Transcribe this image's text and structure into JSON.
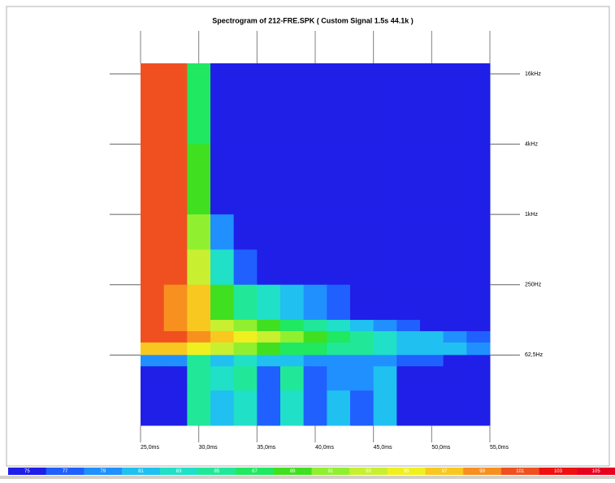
{
  "chart_data": {
    "type": "heatmap",
    "title": "Spectrogram of 212-FRE.SPK ( Custom Signal 1.5s 44.1k )",
    "xlim": [
      25,
      55
    ],
    "xticks": [
      {
        "value": 25,
        "label": "25,0ms"
      },
      {
        "value": 30,
        "label": "30,0ms"
      },
      {
        "value": 35,
        "label": "35,0ms"
      },
      {
        "value": 40,
        "label": "40,0ms"
      },
      {
        "value": 45,
        "label": "45,0ms"
      },
      {
        "value": 50,
        "label": "50,0ms"
      },
      {
        "value": 55,
        "label": "55,0ms"
      }
    ],
    "ylim": [
      15.6,
      19700
    ],
    "log_y": true,
    "yticks": [
      {
        "value": 16000,
        "label": "16kHz"
      },
      {
        "value": 4000,
        "label": "4kHz"
      },
      {
        "value": 1000,
        "label": "1kHz"
      },
      {
        "value": 250,
        "label": "250Hz"
      },
      {
        "value": 62.5,
        "label": "62,5Hz"
      }
    ],
    "x_edges": [
      25,
      27,
      29,
      31,
      33,
      35,
      37,
      39,
      41,
      43,
      45,
      47,
      49,
      51,
      53,
      55
    ],
    "y_edges": [
      19700,
      4000,
      1000,
      500,
      250,
      125,
      100,
      80,
      62.5,
      50,
      31,
      15.6
    ],
    "values": [
      [
        101,
        101,
        87,
        75,
        75,
        75,
        75,
        75,
        75,
        75,
        75,
        75,
        75,
        75,
        75
      ],
      [
        101,
        101,
        89,
        75,
        75,
        75,
        75,
        75,
        75,
        75,
        75,
        75,
        75,
        75,
        75
      ],
      [
        101,
        101,
        91,
        79,
        75,
        75,
        75,
        75,
        75,
        75,
        75,
        75,
        75,
        75,
        75
      ],
      [
        101,
        101,
        93,
        83,
        77,
        75,
        75,
        75,
        75,
        75,
        75,
        75,
        75,
        75,
        75
      ],
      [
        101,
        99,
        97,
        89,
        85,
        83,
        81,
        79,
        77,
        75,
        75,
        75,
        75,
        75,
        75
      ],
      [
        101,
        99,
        97,
        93,
        91,
        89,
        87,
        85,
        83,
        81,
        79,
        77,
        75,
        75,
        75
      ],
      [
        101,
        101,
        99,
        97,
        95,
        93,
        91,
        89,
        87,
        85,
        83,
        81,
        81,
        79,
        77
      ],
      [
        97,
        97,
        95,
        93,
        91,
        89,
        87,
        87,
        85,
        85,
        83,
        81,
        81,
        81,
        79
      ],
      [
        79,
        79,
        85,
        81,
        83,
        81,
        81,
        79,
        79,
        79,
        79,
        77,
        77,
        75,
        75
      ],
      [
        75,
        75,
        85,
        83,
        85,
        77,
        85,
        77,
        79,
        79,
        81,
        75,
        75,
        75,
        75
      ],
      [
        75,
        75,
        85,
        81,
        83,
        77,
        83,
        77,
        81,
        77,
        81,
        75,
        75,
        75,
        75
      ]
    ],
    "colorbar": {
      "values": [
        75,
        77,
        79,
        81,
        83,
        85,
        87,
        89,
        91,
        93,
        95,
        97,
        99,
        101,
        103,
        105
      ],
      "colors": [
        "#1f1fe8",
        "#2060ff",
        "#2090ff",
        "#20c0f0",
        "#20e0c8",
        "#20e898",
        "#20e860",
        "#40e020",
        "#90f030",
        "#c8f030",
        "#f0f020",
        "#f8c820",
        "#f89020",
        "#f05020",
        "#f01010",
        "#e80020"
      ]
    }
  }
}
